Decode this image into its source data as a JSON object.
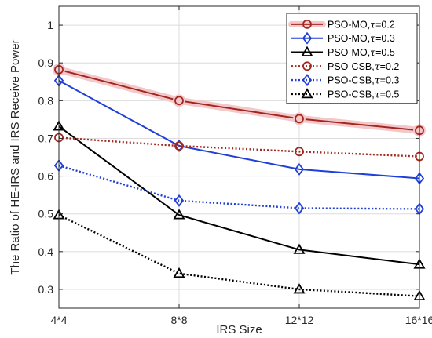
{
  "chart_data": {
    "type": "line",
    "xlabel": "IRS Size",
    "ylabel": "The Ratio of HE-IRS and IRS Receive Power",
    "categories": [
      "4*4",
      "8*8",
      "12*12",
      "16*16"
    ],
    "ylim": [
      0.25,
      1.05
    ],
    "yticks": [
      0.3,
      0.4,
      0.5,
      0.6,
      0.7,
      0.8,
      0.9,
      1
    ],
    "ytick_labels": [
      "0.3",
      "0.4",
      "0.5",
      "0.6",
      "0.7",
      "0.8",
      "0.9",
      "1"
    ],
    "grid": true,
    "legend_position": "top-right",
    "series": [
      {
        "name": "PSO-MO,τ=0.2",
        "label_prefix": "PSO-MO,",
        "tau_symbol": "τ",
        "label_suffix": "=0.2",
        "values": [
          0.882,
          0.8,
          0.752,
          0.721
        ],
        "color": "#a0281e",
        "marker": "circle",
        "dash": "solid",
        "halo": true
      },
      {
        "name": "PSO-MO,τ=0.3",
        "label_prefix": "PSO-MO,",
        "tau_symbol": "τ",
        "label_suffix": "=0.3",
        "values": [
          0.853,
          0.68,
          0.618,
          0.594
        ],
        "color": "#1f3fd6",
        "marker": "diamond",
        "dash": "solid",
        "halo": false
      },
      {
        "name": "PSO-MO,τ=0.5",
        "label_prefix": "PSO-MO,",
        "tau_symbol": "τ",
        "label_suffix": "=0.5",
        "values": [
          0.732,
          0.497,
          0.405,
          0.366
        ],
        "color": "#000000",
        "marker": "triangle",
        "dash": "solid",
        "halo": false
      },
      {
        "name": "PSO-CSB,τ=0.2",
        "label_prefix": "PSO-CSB,",
        "tau_symbol": "τ",
        "label_suffix": "=0.2",
        "values": [
          0.702,
          0.68,
          0.665,
          0.652
        ],
        "color": "#a0281e",
        "marker": "circle",
        "dash": "dotted",
        "halo": false
      },
      {
        "name": "PSO-CSB,τ=0.3",
        "label_prefix": "PSO-CSB,",
        "tau_symbol": "τ",
        "label_suffix": "=0.3",
        "values": [
          0.628,
          0.535,
          0.515,
          0.513
        ],
        "color": "#1f3fd6",
        "marker": "diamond",
        "dash": "dotted",
        "halo": false
      },
      {
        "name": "PSO-CSB,τ=0.5",
        "label_prefix": "PSO-CSB,",
        "tau_symbol": "τ",
        "label_suffix": "=0.5",
        "values": [
          0.497,
          0.342,
          0.3,
          0.282
        ],
        "color": "#000000",
        "marker": "triangle",
        "dash": "dotted",
        "halo": false
      }
    ]
  }
}
